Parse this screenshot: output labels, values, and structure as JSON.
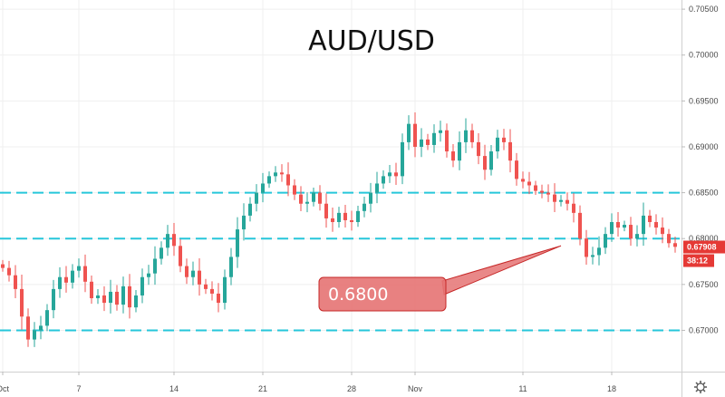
{
  "chart_data": {
    "type": "candlestick",
    "title": "AUD/USD",
    "ylim": [
      0.6655,
      0.706
    ],
    "y_ticks": [
      "0.70500",
      "0.70000",
      "0.69500",
      "0.69000",
      "0.68500",
      "0.68000",
      "0.67500",
      "0.67000"
    ],
    "x_ticks": [
      {
        "label": "Oct",
        "i": 0
      },
      {
        "label": "7",
        "i": 12
      },
      {
        "label": "14",
        "i": 27
      },
      {
        "label": "21",
        "i": 41
      },
      {
        "label": "28",
        "i": 55
      },
      {
        "label": "Nov",
        "i": 65
      },
      {
        "label": "11",
        "i": 82
      },
      {
        "label": "18",
        "i": 96
      }
    ],
    "levels": [
      {
        "value": 0.685,
        "color": "#26c6da"
      },
      {
        "value": 0.68,
        "color": "#26c6da"
      },
      {
        "value": 0.67,
        "color": "#26c6da"
      }
    ],
    "callout": {
      "label": "0.6800",
      "target_index": 88,
      "target_value": 0.68
    },
    "last_price": {
      "label": "0.67908",
      "value": 0.67908,
      "color": "#e53935"
    },
    "countdown": {
      "label": "38:12",
      "color": "#e53935"
    },
    "up_color": "#26a69a",
    "down_color": "#ef5350",
    "closes": [
      0.6768,
      0.676,
      0.6745,
      0.6715,
      0.669,
      0.67,
      0.6705,
      0.6722,
      0.6745,
      0.6758,
      0.6752,
      0.6765,
      0.677,
      0.6753,
      0.6735,
      0.6738,
      0.673,
      0.6742,
      0.6728,
      0.6748,
      0.6725,
      0.6738,
      0.6758,
      0.6762,
      0.6778,
      0.679,
      0.6805,
      0.6792,
      0.677,
      0.6758,
      0.6765,
      0.675,
      0.6745,
      0.674,
      0.673,
      0.6758,
      0.678,
      0.681,
      0.6825,
      0.6838,
      0.685,
      0.686,
      0.6868,
      0.6872,
      0.687,
      0.6858,
      0.6848,
      0.6838,
      0.684,
      0.685,
      0.6838,
      0.6822,
      0.6818,
      0.6828,
      0.682,
      0.6818,
      0.683,
      0.6838,
      0.685,
      0.686,
      0.6868,
      0.6872,
      0.6868,
      0.6905,
      0.6925,
      0.69,
      0.6908,
      0.6902,
      0.6915,
      0.6918,
      0.6895,
      0.6885,
      0.6905,
      0.6918,
      0.6905,
      0.689,
      0.6875,
      0.6895,
      0.691,
      0.6905,
      0.6885,
      0.6865,
      0.6862,
      0.6858,
      0.6852,
      0.685,
      0.6848,
      0.684,
      0.6842,
      0.6838,
      0.6828,
      0.68,
      0.678,
      0.6782,
      0.679,
      0.6805,
      0.6818,
      0.6812,
      0.6815,
      0.68,
      0.6805,
      0.6825,
      0.6818,
      0.6812,
      0.6805,
      0.6795,
      0.6791
    ]
  }
}
